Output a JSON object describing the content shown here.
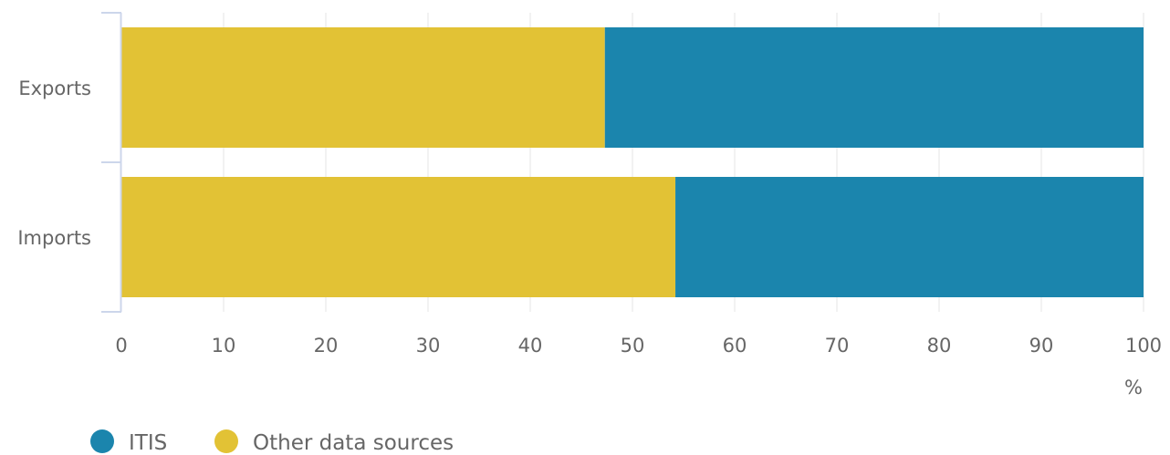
{
  "chart_data": {
    "type": "bar",
    "orientation": "horizontal",
    "stacked": true,
    "categories": [
      "Exports",
      "Imports"
    ],
    "series": [
      {
        "name": "ITIS",
        "color": "#1b85ad",
        "values": [
          52.7,
          45.8
        ]
      },
      {
        "name": "Other data sources",
        "color": "#e2c235",
        "values": [
          47.3,
          54.2
        ]
      }
    ],
    "stack_order": [
      "Other data sources",
      "ITIS"
    ],
    "xlim": [
      0,
      100
    ],
    "xticks": [
      0,
      10,
      20,
      30,
      40,
      50,
      60,
      70,
      80,
      90,
      100
    ],
    "x_unit": "%",
    "grid": true,
    "legend_position": "bottom-left"
  }
}
